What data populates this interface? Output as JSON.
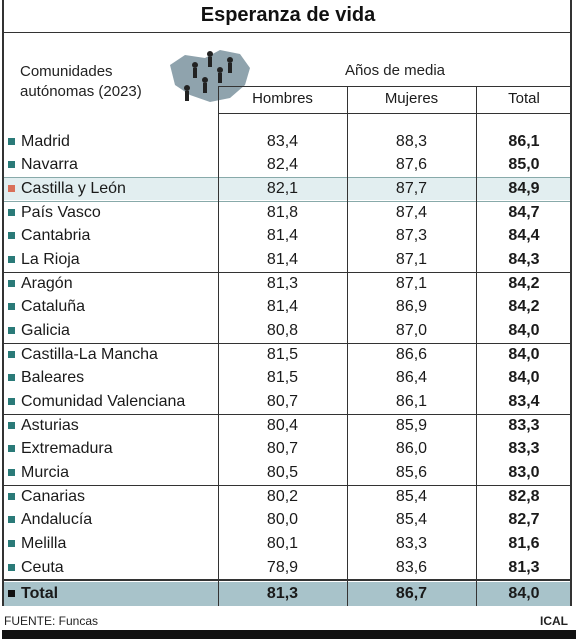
{
  "title": "Esperanza de vida",
  "header": {
    "row_label": "Comunidades autónomas (2023)",
    "group_label": "Años de media",
    "columns": [
      "Hombres",
      "Mujeres",
      "Total"
    ]
  },
  "rows": [
    [
      "Madrid",
      "83,4",
      "88,3",
      "86,1"
    ],
    [
      "Navarra",
      "82,4",
      "87,6",
      "85,0"
    ],
    [
      "Castilla y León",
      "82,1",
      "87,7",
      "84,9"
    ],
    [
      "País Vasco",
      "81,8",
      "87,4",
      "84,7"
    ],
    [
      "Cantabria",
      "81,4",
      "87,3",
      "84,4"
    ],
    [
      "La Rioja",
      "81,4",
      "87,1",
      "84,3"
    ],
    [
      "Aragón",
      "81,3",
      "87,1",
      "84,2"
    ],
    [
      "Cataluña",
      "81,4",
      "86,9",
      "84,2"
    ],
    [
      "Galicia",
      "80,8",
      "87,0",
      "84,0"
    ],
    [
      "Castilla-La Mancha",
      "81,5",
      "86,6",
      "84,0"
    ],
    [
      "Baleares",
      "81,5",
      "86,4",
      "84,0"
    ],
    [
      "Comunidad Valenciana",
      "80,7",
      "86,1",
      "83,4"
    ],
    [
      "Asturias",
      "80,4",
      "85,9",
      "83,3"
    ],
    [
      "Extremadura",
      "80,7",
      "86,0",
      "83,3"
    ],
    [
      "Murcia",
      "80,5",
      "85,6",
      "83,0"
    ],
    [
      "Canarias",
      "80,2",
      "85,4",
      "82,8"
    ],
    [
      "Andalucía",
      "80,0",
      "85,4",
      "82,7"
    ],
    [
      "Melilla",
      "80,1",
      "83,3",
      "81,6"
    ],
    [
      "Ceuta",
      "78,9",
      "83,6",
      "81,3"
    ]
  ],
  "total": [
    "Total",
    "81,3",
    "86,7",
    "84,0"
  ],
  "footer": {
    "source": "FUENTE: Funcas",
    "brand": "ICAL"
  }
}
